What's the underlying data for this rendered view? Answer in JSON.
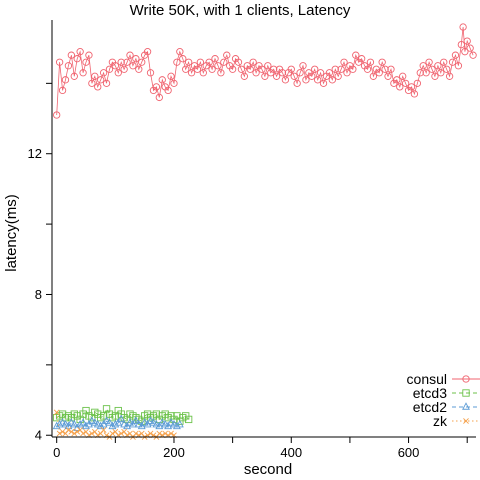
{
  "chart_data": {
    "type": "line",
    "title": "Write 50K, with 1 clients, Latency",
    "xlabel": "second",
    "ylabel": "latency(ms)",
    "xlim": [
      -8,
      715
    ],
    "ylim": [
      3.95,
      15.8
    ],
    "xticks": [
      0,
      100,
      200,
      300,
      400,
      500,
      600,
      700
    ],
    "xtick_labels": [
      "0",
      "",
      "200",
      "",
      "400",
      "",
      "600",
      ""
    ],
    "yticks": [
      4,
      6,
      8,
      10,
      12,
      14
    ],
    "ytick_labels": [
      "4",
      "",
      "8",
      "",
      "12",
      ""
    ],
    "grid": false,
    "legend_position": "bottom-right",
    "series": [
      {
        "name": "consul",
        "color": "#f0636f",
        "marker": "circle",
        "line": "solid",
        "points": [
          [
            0,
            13.1
          ],
          [
            5,
            14.6
          ],
          [
            10,
            13.8
          ],
          [
            15,
            14.1
          ],
          [
            20,
            14.5
          ],
          [
            25,
            14.8
          ],
          [
            30,
            14.2
          ],
          [
            35,
            14.7
          ],
          [
            40,
            14.9
          ],
          [
            45,
            14.3
          ],
          [
            50,
            14.6
          ],
          [
            55,
            14.8
          ],
          [
            60,
            14.0
          ],
          [
            65,
            14.2
          ],
          [
            70,
            13.9
          ],
          [
            75,
            14.1
          ],
          [
            80,
            14.3
          ],
          [
            85,
            14.0
          ],
          [
            90,
            14.4
          ],
          [
            95,
            14.6
          ],
          [
            100,
            14.5
          ],
          [
            105,
            14.3
          ],
          [
            110,
            14.6
          ],
          [
            115,
            14.4
          ],
          [
            120,
            14.6
          ],
          [
            125,
            14.8
          ],
          [
            130,
            14.5
          ],
          [
            135,
            14.7
          ],
          [
            140,
            14.4
          ],
          [
            145,
            14.6
          ],
          [
            150,
            14.8
          ],
          [
            155,
            14.9
          ],
          [
            160,
            14.3
          ],
          [
            165,
            13.8
          ],
          [
            170,
            13.9
          ],
          [
            175,
            13.6
          ],
          [
            180,
            14.1
          ],
          [
            185,
            13.9
          ],
          [
            190,
            13.8
          ],
          [
            195,
            14.2
          ],
          [
            200,
            14.0
          ],
          [
            205,
            14.6
          ],
          [
            210,
            14.9
          ],
          [
            215,
            14.7
          ],
          [
            220,
            14.4
          ],
          [
            225,
            14.6
          ],
          [
            230,
            14.3
          ],
          [
            235,
            14.5
          ],
          [
            240,
            14.4
          ],
          [
            245,
            14.6
          ],
          [
            250,
            14.3
          ],
          [
            255,
            14.5
          ],
          [
            260,
            14.6
          ],
          [
            265,
            14.4
          ],
          [
            270,
            14.7
          ],
          [
            275,
            14.5
          ],
          [
            280,
            14.3
          ],
          [
            285,
            14.6
          ],
          [
            290,
            14.8
          ],
          [
            295,
            14.5
          ],
          [
            300,
            14.4
          ],
          [
            305,
            14.7
          ],
          [
            310,
            14.6
          ],
          [
            315,
            14.4
          ],
          [
            320,
            14.2
          ],
          [
            325,
            14.5
          ],
          [
            330,
            14.4
          ],
          [
            335,
            14.6
          ],
          [
            340,
            14.3
          ],
          [
            345,
            14.5
          ],
          [
            350,
            14.4
          ],
          [
            355,
            14.2
          ],
          [
            360,
            14.5
          ],
          [
            365,
            14.3
          ],
          [
            370,
            14.4
          ],
          [
            375,
            14.2
          ],
          [
            380,
            14.4
          ],
          [
            385,
            14.3
          ],
          [
            390,
            14.1
          ],
          [
            395,
            14.3
          ],
          [
            400,
            14.4
          ],
          [
            405,
            14.2
          ],
          [
            410,
            14.0
          ],
          [
            415,
            14.3
          ],
          [
            420,
            14.5
          ],
          [
            425,
            14.1
          ],
          [
            430,
            14.3
          ],
          [
            435,
            14.2
          ],
          [
            440,
            14.4
          ],
          [
            445,
            14.1
          ],
          [
            450,
            14.3
          ],
          [
            455,
            14.0
          ],
          [
            460,
            14.2
          ],
          [
            465,
            14.3
          ],
          [
            470,
            14.1
          ],
          [
            475,
            14.4
          ],
          [
            480,
            14.2
          ],
          [
            485,
            14.4
          ],
          [
            490,
            14.6
          ],
          [
            495,
            14.3
          ],
          [
            500,
            14.5
          ],
          [
            505,
            14.4
          ],
          [
            510,
            14.8
          ],
          [
            515,
            14.6
          ],
          [
            520,
            14.7
          ],
          [
            525,
            14.5
          ],
          [
            530,
            14.4
          ],
          [
            535,
            14.6
          ],
          [
            540,
            14.2
          ],
          [
            545,
            14.4
          ],
          [
            550,
            14.3
          ],
          [
            555,
            14.6
          ],
          [
            560,
            14.4
          ],
          [
            565,
            14.2
          ],
          [
            570,
            14.4
          ],
          [
            575,
            14.0
          ],
          [
            580,
            14.1
          ],
          [
            585,
            13.9
          ],
          [
            590,
            14.2
          ],
          [
            595,
            14.0
          ],
          [
            600,
            13.8
          ],
          [
            605,
            13.9
          ],
          [
            610,
            13.7
          ],
          [
            615,
            14.0
          ],
          [
            620,
            14.3
          ],
          [
            625,
            14.5
          ],
          [
            630,
            14.3
          ],
          [
            635,
            14.6
          ],
          [
            640,
            14.4
          ],
          [
            645,
            14.2
          ],
          [
            650,
            14.5
          ],
          [
            655,
            14.3
          ],
          [
            660,
            14.6
          ],
          [
            665,
            14.4
          ],
          [
            670,
            14.2
          ],
          [
            675,
            14.6
          ],
          [
            680,
            14.8
          ],
          [
            685,
            14.5
          ],
          [
            690,
            15.1
          ],
          [
            693,
            15.6
          ],
          [
            696,
            14.9
          ],
          [
            700,
            15.2
          ],
          [
            705,
            15.0
          ],
          [
            710,
            14.8
          ]
        ]
      },
      {
        "name": "etcd3",
        "color": "#6cc24a",
        "marker": "square",
        "line": "dashed",
        "points": [
          [
            0,
            4.5
          ],
          [
            5,
            4.55
          ],
          [
            10,
            4.6
          ],
          [
            15,
            4.5
          ],
          [
            20,
            4.55
          ],
          [
            25,
            4.5
          ],
          [
            30,
            4.6
          ],
          [
            35,
            4.55
          ],
          [
            40,
            4.45
          ],
          [
            45,
            4.6
          ],
          [
            50,
            4.7
          ],
          [
            55,
            4.55
          ],
          [
            60,
            4.5
          ],
          [
            65,
            4.65
          ],
          [
            70,
            4.6
          ],
          [
            75,
            4.5
          ],
          [
            80,
            4.55
          ],
          [
            85,
            4.75
          ],
          [
            90,
            4.6
          ],
          [
            95,
            4.5
          ],
          [
            100,
            4.55
          ],
          [
            105,
            4.7
          ],
          [
            110,
            4.6
          ],
          [
            115,
            4.5
          ],
          [
            120,
            4.45
          ],
          [
            125,
            4.6
          ],
          [
            130,
            4.55
          ],
          [
            135,
            4.5
          ],
          [
            140,
            4.45
          ],
          [
            145,
            4.4
          ],
          [
            150,
            4.55
          ],
          [
            155,
            4.6
          ],
          [
            160,
            4.5
          ],
          [
            165,
            4.55
          ],
          [
            170,
            4.6
          ],
          [
            175,
            4.45
          ],
          [
            180,
            4.55
          ],
          [
            185,
            4.6
          ],
          [
            190,
            4.5
          ],
          [
            195,
            4.55
          ],
          [
            200,
            4.45
          ],
          [
            205,
            4.55
          ],
          [
            210,
            4.4
          ],
          [
            215,
            4.5
          ],
          [
            220,
            4.55
          ],
          [
            225,
            4.45
          ]
        ]
      },
      {
        "name": "etcd2",
        "color": "#5b9bd5",
        "marker": "triangle",
        "line": "dashed",
        "points": [
          [
            0,
            4.25
          ],
          [
            5,
            4.3
          ],
          [
            10,
            4.35
          ],
          [
            15,
            4.3
          ],
          [
            20,
            4.25
          ],
          [
            25,
            4.35
          ],
          [
            30,
            4.3
          ],
          [
            35,
            4.2
          ],
          [
            40,
            4.3
          ],
          [
            45,
            4.35
          ],
          [
            50,
            4.25
          ],
          [
            55,
            4.3
          ],
          [
            60,
            4.4
          ],
          [
            65,
            4.35
          ],
          [
            70,
            4.3
          ],
          [
            75,
            4.25
          ],
          [
            80,
            4.3
          ],
          [
            85,
            4.4
          ],
          [
            90,
            4.35
          ],
          [
            95,
            4.25
          ],
          [
            100,
            4.3
          ],
          [
            105,
            4.35
          ],
          [
            110,
            4.45
          ],
          [
            115,
            4.3
          ],
          [
            120,
            4.25
          ],
          [
            125,
            4.35
          ],
          [
            130,
            4.3
          ],
          [
            135,
            4.4
          ],
          [
            140,
            4.3
          ],
          [
            145,
            4.25
          ],
          [
            150,
            4.35
          ],
          [
            155,
            4.3
          ],
          [
            160,
            4.4
          ],
          [
            165,
            4.35
          ],
          [
            170,
            4.3
          ],
          [
            175,
            4.25
          ],
          [
            180,
            4.35
          ],
          [
            185,
            4.3
          ],
          [
            190,
            4.25
          ],
          [
            195,
            4.35
          ],
          [
            200,
            4.3
          ],
          [
            205,
            4.25
          ],
          [
            210,
            4.3
          ]
        ]
      },
      {
        "name": "zk",
        "color": "#f5a04a",
        "marker": "x",
        "line": "dotted",
        "points": [
          [
            0,
            4.65
          ],
          [
            5,
            4.05
          ],
          [
            10,
            4.1
          ],
          [
            15,
            4.05
          ],
          [
            20,
            4.15
          ],
          [
            25,
            4.1
          ],
          [
            30,
            4.05
          ],
          [
            35,
            4.1
          ],
          [
            40,
            4.15
          ],
          [
            45,
            4.05
          ],
          [
            50,
            4.1
          ],
          [
            55,
            4.0
          ],
          [
            60,
            4.05
          ],
          [
            65,
            4.1
          ],
          [
            70,
            4.0
          ],
          [
            75,
            4.05
          ],
          [
            80,
            4.15
          ],
          [
            85,
            4.0
          ],
          [
            90,
            3.95
          ],
          [
            95,
            4.05
          ],
          [
            100,
            4.1
          ],
          [
            105,
            4.0
          ],
          [
            110,
            4.05
          ],
          [
            115,
            4.1
          ],
          [
            120,
            4.0
          ],
          [
            125,
            4.05
          ],
          [
            130,
            3.95
          ],
          [
            135,
            4.05
          ],
          [
            140,
            4.0
          ],
          [
            145,
            4.05
          ],
          [
            150,
            3.95
          ],
          [
            155,
            4.0
          ],
          [
            160,
            4.05
          ],
          [
            165,
            4.0
          ],
          [
            170,
            3.95
          ],
          [
            175,
            4.05
          ],
          [
            180,
            4.0
          ],
          [
            185,
            4.05
          ],
          [
            190,
            4.0
          ],
          [
            195,
            4.05
          ],
          [
            200,
            4.0
          ]
        ]
      }
    ]
  }
}
